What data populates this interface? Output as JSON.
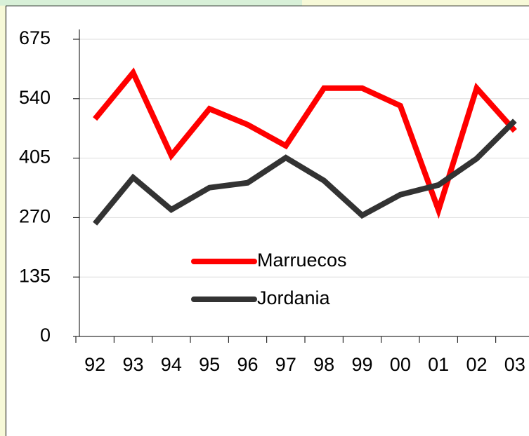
{
  "chart_data": {
    "type": "line",
    "categories": [
      "92",
      "93",
      "94",
      "95",
      "96",
      "97",
      "98",
      "99",
      "00",
      "01",
      "02",
      "03"
    ],
    "series": [
      {
        "name": "Marruecos",
        "color": "#ff0000",
        "values": [
          494,
          599,
          411,
          517,
          481,
          433,
          564,
          564,
          524,
          287,
          564,
          467
        ]
      },
      {
        "name": "Jordania",
        "color": "#333333",
        "values": [
          256,
          361,
          288,
          338,
          349,
          406,
          354,
          275,
          322,
          344,
          404,
          490
        ]
      }
    ],
    "ylim": [
      0,
      675
    ],
    "yticks": [
      0,
      135,
      270,
      405,
      540,
      675
    ],
    "grid": true,
    "legend": "center"
  }
}
